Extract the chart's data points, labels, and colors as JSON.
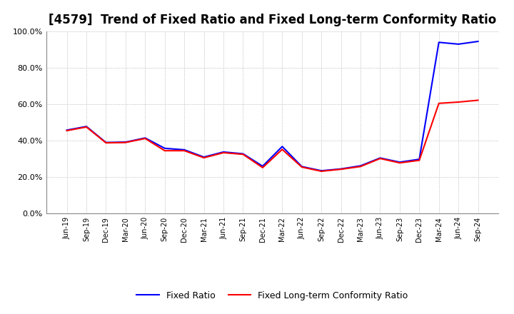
{
  "title": "[4579]  Trend of Fixed Ratio and Fixed Long-term Conformity Ratio",
  "x_labels": [
    "Jun-19",
    "Sep-19",
    "Dec-19",
    "Mar-20",
    "Jun-20",
    "Sep-20",
    "Dec-20",
    "Mar-21",
    "Jun-21",
    "Sep-21",
    "Dec-21",
    "Mar-22",
    "Jun-22",
    "Sep-22",
    "Dec-22",
    "Mar-23",
    "Jun-23",
    "Sep-23",
    "Dec-23",
    "Mar-24",
    "Jun-24",
    "Sep-24"
  ],
  "fixed_ratio": [
    0.458,
    0.478,
    0.39,
    0.392,
    0.415,
    0.358,
    0.35,
    0.31,
    0.338,
    0.328,
    0.26,
    0.368,
    0.258,
    0.235,
    0.245,
    0.262,
    0.305,
    0.282,
    0.298,
    0.94,
    0.93,
    0.945
  ],
  "fixed_lt_ratio": [
    0.455,
    0.475,
    0.388,
    0.39,
    0.412,
    0.345,
    0.345,
    0.306,
    0.334,
    0.325,
    0.252,
    0.352,
    0.255,
    0.232,
    0.243,
    0.258,
    0.302,
    0.278,
    0.292,
    0.605,
    0.612,
    0.622
  ],
  "fixed_ratio_color": "#0000FF",
  "fixed_lt_ratio_color": "#FF0000",
  "ylim": [
    0.0,
    1.0
  ],
  "yticks": [
    0.0,
    0.2,
    0.4,
    0.6,
    0.8,
    1.0
  ],
  "background_color": "#FFFFFF",
  "plot_bg_color": "#FFFFFF",
  "grid_color": "#AAAAAA",
  "title_fontsize": 12,
  "legend_labels": [
    "Fixed Ratio",
    "Fixed Long-term Conformity Ratio"
  ]
}
